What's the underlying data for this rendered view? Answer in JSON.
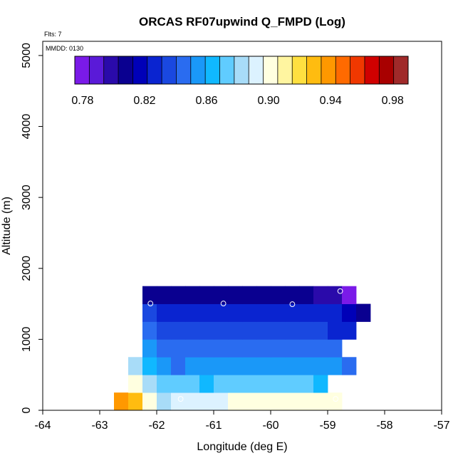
{
  "chart_data": {
    "type": "heatmap",
    "title": "ORCAS RF07upwind Q_FMPD (Log)",
    "subtitle_flights": "Flts: 7",
    "subtitle_date": "MMDD: 0130",
    "xlabel": "Longitude (deg E)",
    "ylabel": "Altitude (m)",
    "xlim": [
      -64,
      -57
    ],
    "ylim": [
      0,
      5200
    ],
    "x_ticks": [
      -64,
      -63,
      -62,
      -61,
      -60,
      -59,
      -58,
      -57
    ],
    "x_tick_labels": [
      "-64",
      "-63",
      "-62",
      "-61",
      "-60",
      "-59",
      "-58",
      "-57"
    ],
    "y_ticks": [
      0,
      1000,
      2000,
      3000,
      4000,
      5000
    ],
    "y_tick_labels": [
      "0",
      "1000",
      "2000",
      "3000",
      "4000",
      "5000"
    ],
    "cell_width_deg": 0.25,
    "cell_height_m": 250,
    "colorbar": {
      "min": 0.775,
      "max": 0.99,
      "tick_values": [
        0.78,
        0.82,
        0.86,
        0.9,
        0.94,
        0.98
      ],
      "tick_labels": [
        "0.78",
        "0.82",
        "0.86",
        "0.90",
        "0.94",
        "0.98"
      ],
      "colors": [
        "#7a1ae8",
        "#5a1ad8",
        "#2a0aaa",
        "#0a0090",
        "#0000b8",
        "#0a24d0",
        "#1a48e0",
        "#2a6cf0",
        "#1a98f8",
        "#10b8ff",
        "#60ccff",
        "#a8dcf8",
        "#dcf2ff",
        "#ffffe0",
        "#fff5a0",
        "#ffe040",
        "#ffbc10",
        "#ff9800",
        "#ff6a00",
        "#f03800",
        "#d00000",
        "#a80000",
        "#a02a2a"
      ]
    },
    "rows": [
      {
        "alt_bottom": 0,
        "x_start": -62.75,
        "values": [
          0.935,
          0.925,
          0.905,
          0.885,
          0.895,
          0.892,
          0.893,
          0.895,
          0.897,
          0.898,
          0.901,
          0.901,
          0.9,
          0.9,
          0.902,
          0.902
        ]
      },
      {
        "alt_bottom": 250,
        "x_start": -62.5,
        "values": [
          0.905,
          0.88,
          0.872,
          0.87,
          0.87,
          0.868,
          0.87,
          0.871,
          0.872,
          0.873,
          0.872,
          0.873,
          0.872,
          0.861
        ]
      },
      {
        "alt_bottom": 500,
        "x_start": -62.5,
        "values": [
          0.878,
          0.863,
          0.856,
          0.849,
          0.851,
          0.852,
          0.854,
          0.853,
          0.856,
          0.858,
          0.856,
          0.856,
          0.855,
          0.852,
          0.85,
          0.847
        ]
      },
      {
        "alt_bottom": 750,
        "x_start": -62.25,
        "values": [
          0.852,
          0.848,
          0.847,
          0.848,
          0.848,
          0.847,
          0.848,
          0.848,
          0.847,
          0.848,
          0.847,
          0.848,
          0.847,
          0.849
        ]
      },
      {
        "alt_bottom": 1000,
        "x_start": -62.25,
        "values": [
          0.846,
          0.838,
          0.838,
          0.838,
          0.838,
          0.838,
          0.839,
          0.839,
          0.839,
          0.839,
          0.839,
          0.839,
          0.838,
          0.831,
          0.826
        ]
      },
      {
        "alt_bottom": 1250,
        "x_start": -62.25,
        "values": [
          0.832,
          0.83,
          0.83,
          0.83,
          0.83,
          0.83,
          0.83,
          0.829,
          0.829,
          0.829,
          0.829,
          0.829,
          0.829,
          0.828,
          0.815,
          0.806
        ]
      },
      {
        "alt_bottom": 1500,
        "x_start": -62.25,
        "values": [
          0.812,
          0.812,
          0.812,
          0.812,
          0.812,
          0.812,
          0.812,
          0.812,
          0.812,
          0.812,
          0.812,
          0.812,
          0.8,
          0.795,
          0.78
        ]
      }
    ],
    "observation_markers": [
      {
        "lon": -62.83,
        "alt": 160
      },
      {
        "lon": -61.58,
        "alt": 160
      },
      {
        "lon": -58.86,
        "alt": 160
      },
      {
        "lon": -62.11,
        "alt": 1505
      },
      {
        "lon": -60.83,
        "alt": 1505
      },
      {
        "lon": -59.62,
        "alt": 1495
      },
      {
        "lon": -58.78,
        "alt": 1680
      }
    ]
  }
}
